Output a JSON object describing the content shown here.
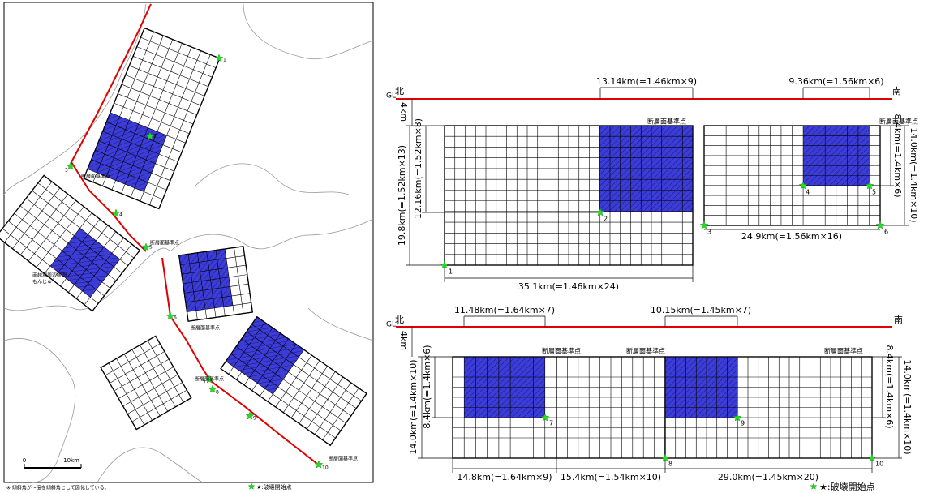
{
  "map": {
    "fault_labels": [
      "断層面基準点",
      "断層面基準点",
      "断層面基準点",
      "断層面基準点",
      "断層面基準点"
    ],
    "site_label": [
      "南越場周辺観測",
      "もんじゅ"
    ],
    "points": [
      "1",
      "2",
      "3",
      "4",
      "5",
      "6",
      "7",
      "8",
      "9",
      "10"
    ],
    "scale": [
      "0",
      "10km"
    ],
    "footnote": "※ 傾斜角が～度を傾斜角として図化している。",
    "legend": "★:破壊開始点"
  },
  "section_north": {
    "gl": "GL",
    "north": "北",
    "south": "南",
    "depth": "4km",
    "top_dims": [
      "13.14km(=1.46km×9)",
      "9.36km(=1.56km×6)"
    ],
    "reference_labels": [
      "断層面基準点",
      "断層面基準点"
    ],
    "left_dims": [
      "19.8km(=1.52km×13)",
      "12.16km(=1.52km×8)"
    ],
    "right_dims": [
      "8.4km(=1.4km×6)",
      "14.0km(=1.4km×10)"
    ],
    "bottom_dims": [
      "35.1km(=1.46km×24)",
      "24.9km(=1.56km×16)"
    ],
    "points": [
      "1",
      "2",
      "3",
      "4",
      "5",
      "6"
    ]
  },
  "section_south": {
    "gl": "GL",
    "north": "北",
    "south": "南",
    "depth": "4km",
    "top_dims": [
      "11.48km(=1.64km×7)",
      "10.15km(=1.45km×7)"
    ],
    "reference_labels": [
      "断層面基準点",
      "断層面基準点",
      "断層面基準点"
    ],
    "left_dims": [
      "14.0km(=1.4km×10)",
      "8.4km(=1.4km×6)"
    ],
    "right_dims": [
      "8.4km(=1.4km×6)",
      "14.0km(=1.4km×10)"
    ],
    "bottom_dims": [
      "14.8km(=1.64km×9)",
      "15.4km(=1.54km×10)",
      "29.0km(=1.45km×20)"
    ],
    "points": [
      "7",
      "8",
      "9",
      "10"
    ],
    "legend": "★:破壊開始点"
  }
}
